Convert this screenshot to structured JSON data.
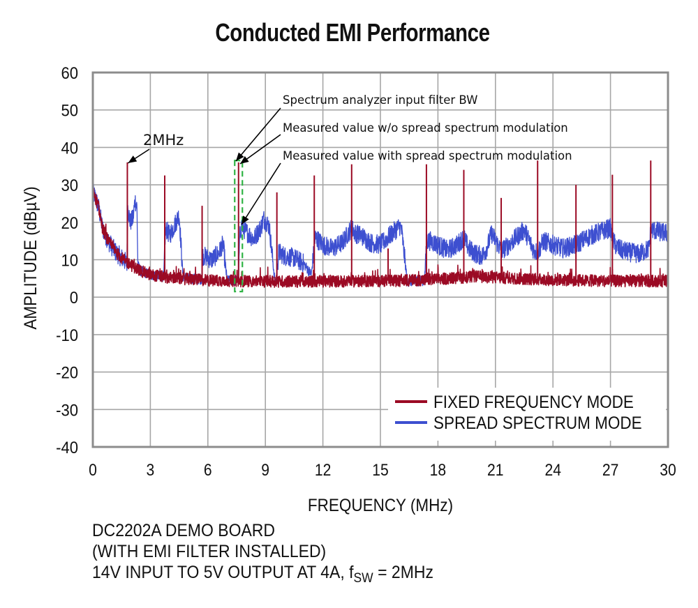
{
  "chart_data": {
    "type": "line",
    "title": "Conducted EMI Performance",
    "xlabel": "FREQUENCY (MHz)",
    "ylabel": "AMPLITUDE (dBµV)",
    "xlim": [
      0,
      30
    ],
    "ylim": [
      -40,
      60
    ],
    "xticks": [
      0,
      3,
      6,
      9,
      12,
      15,
      18,
      21,
      24,
      27,
      30
    ],
    "yticks": [
      60,
      50,
      40,
      30,
      20,
      10,
      0,
      -10,
      -20,
      -30,
      -40
    ],
    "grid": true,
    "legend_position": "bottom-right",
    "colors": {
      "fixed": "#9b0a24",
      "spread": "#3d4fd0",
      "filter_box": "#2fb344",
      "grid": "#a6a6a6",
      "frame": "#8c8c8c"
    },
    "series": [
      {
        "name": "FIXED FREQUENCY MODE",
        "key": "fixed",
        "noise_floor": {
          "x": [
            0.0,
            0.1,
            0.3,
            0.5,
            0.8,
            1.2,
            1.6,
            2.0,
            2.5,
            3.0,
            4.0,
            5.0,
            6.0,
            8.0,
            10.0,
            12.0,
            14.0,
            16.0,
            18.0,
            20.0,
            22.0,
            24.0,
            26.0,
            28.0,
            30.0
          ],
          "y": [
            28.0,
            27.0,
            24.0,
            18.5,
            15.0,
            12.0,
            10.0,
            8.5,
            7.0,
            6.0,
            5.2,
            4.8,
            4.5,
            4.3,
            4.2,
            4.2,
            4.3,
            4.4,
            4.8,
            5.5,
            5.0,
            4.6,
            4.4,
            4.3,
            4.3
          ]
        },
        "harmonics": {
          "x": [
            1.8,
            3.75,
            5.7,
            7.6,
            9.6,
            11.55,
            13.5,
            15.4,
            17.4,
            19.35,
            21.3,
            23.2,
            25.2,
            27.1,
            29.1
          ],
          "y": [
            36.0,
            32.5,
            24.4,
            36.0,
            28.0,
            32.5,
            35.5,
            13.0,
            35.5,
            34.0,
            26.5,
            36.5,
            30.0,
            32.7,
            36.5
          ]
        }
      },
      {
        "name": "SPREAD SPECTRUM MODE",
        "key": "spread",
        "envelope": {
          "x": [
            0.0,
            0.1,
            0.3,
            0.5,
            0.8,
            1.2,
            1.6,
            1.78,
            1.82,
            1.95,
            2.1,
            2.2,
            2.3,
            2.35,
            2.5,
            3.0,
            3.7,
            3.78,
            3.85,
            4.0,
            4.2,
            4.5,
            4.55,
            4.7,
            5.0,
            5.68,
            5.72,
            5.8,
            6.2,
            6.6,
            6.7,
            6.8,
            7.0,
            7.6,
            7.66,
            7.75,
            8.0,
            8.4,
            8.8,
            8.9,
            9.2,
            9.5,
            9.55,
            9.7,
            10.0,
            10.5,
            11.0,
            11.4,
            11.6,
            12.0,
            12.5,
            13.0,
            13.5,
            13.7,
            14.0,
            14.5,
            15.0,
            15.5,
            16.0,
            16.1,
            16.4,
            16.8,
            17.3,
            17.42,
            17.6,
            18.0,
            18.5,
            19.0,
            19.35,
            19.6,
            20.0,
            20.3,
            20.5,
            20.6,
            20.8,
            21.3,
            21.6,
            22.0,
            22.5,
            23.0,
            23.2,
            23.5,
            24.0,
            24.5,
            25.2,
            25.5,
            26.0,
            26.5,
            27.0,
            27.1,
            27.3,
            27.6,
            28.0,
            28.5,
            29.0,
            29.1,
            29.2,
            29.5,
            30.0
          ],
          "y": [
            28.0,
            27.0,
            24.0,
            18.5,
            15.0,
            12.0,
            10.0,
            9.0,
            24.0,
            20.0,
            21.0,
            26.0,
            24.0,
            8.5,
            7.0,
            6.0,
            5.5,
            17.0,
            18.0,
            16.5,
            18.5,
            22.0,
            18.0,
            5.5,
            5.0,
            4.8,
            11.0,
            11.0,
            10.0,
            12.0,
            13.5,
            14.0,
            4.5,
            4.4,
            16.0,
            19.0,
            17.5,
            15.5,
            19.0,
            21.0,
            19.0,
            4.0,
            4.0,
            12.0,
            11.0,
            10.5,
            9.0,
            6.0,
            16.0,
            14.0,
            13.0,
            14.5,
            18.5,
            17.0,
            16.5,
            14.5,
            14.0,
            16.5,
            19.0,
            18.0,
            4.2,
            4.3,
            4.5,
            15.0,
            15.0,
            14.0,
            12.5,
            14.0,
            16.0,
            13.0,
            11.5,
            11.0,
            12.5,
            14.0,
            17.0,
            12.5,
            13.5,
            15.5,
            18.0,
            12.5,
            12.0,
            15.0,
            14.0,
            13.0,
            14.0,
            15.0,
            16.5,
            17.5,
            18.5,
            15.5,
            13.5,
            12.5,
            12.0,
            11.5,
            13.0,
            17.5,
            18.0,
            17.5,
            17.0
          ]
        }
      }
    ],
    "annotations": [
      {
        "text": "2MHz",
        "points_to": {
          "x": 1.8,
          "y": 36.0
        }
      },
      {
        "text": "Spectrum analyzer input filter BW",
        "points_to": {
          "x": 7.45,
          "y": 36.0
        }
      },
      {
        "text": "Measured value w/o spread spectrum modulation",
        "points_to": {
          "x": 7.65,
          "y": 35.5
        }
      },
      {
        "text": "Measured value with spread spectrum modulation",
        "points_to": {
          "x": 7.75,
          "y": 20.0
        }
      }
    ],
    "filter_bw_box": {
      "x_from": 7.4,
      "x_to": 7.8,
      "y_from": 1.5,
      "y_to": 36.5
    },
    "legend": [
      "FIXED FREQUENCY MODE",
      "SPREAD SPECTRUM MODE"
    ]
  },
  "footnote": {
    "line1": "DC2202A DEMO BOARD",
    "line2": "(WITH EMI FILTER INSTALLED)",
    "line3_prefix": "14V INPUT TO 5V OUTPUT AT 4A, f",
    "line3_sub": "SW",
    "line3_suffix": " = 2MHz"
  }
}
